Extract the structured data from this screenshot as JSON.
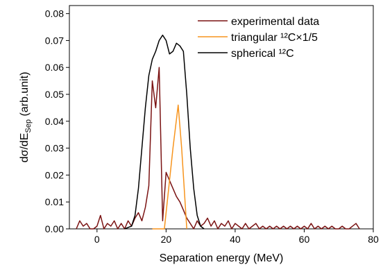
{
  "chart_data": {
    "type": "line",
    "xlabel": "Separation energy (MeV)",
    "ylabel_parts": [
      "dσ/dE",
      "Sep",
      " (arb.unit)"
    ],
    "xlim": [
      -8,
      80
    ],
    "ylim": [
      0,
      0.083
    ],
    "xticks": [
      0,
      20,
      40,
      60,
      80
    ],
    "yticks": [
      {
        "value": 0,
        "label": "0.00"
      },
      {
        "value": 0.01,
        "label": "0.01"
      },
      {
        "value": 0.02,
        "label": "0.02"
      },
      {
        "value": 0.03,
        "label": "0.03"
      },
      {
        "value": 0.04,
        "label": "0.04"
      },
      {
        "value": 0.05,
        "label": "0.05"
      },
      {
        "value": 0.06,
        "label": "0.06"
      },
      {
        "value": 0.07,
        "label": "0.07"
      },
      {
        "value": 0.08,
        "label": "0.08"
      }
    ],
    "legend": "upper right",
    "series": [
      {
        "name": "experimental data",
        "color": "#7a1212",
        "x": [
          -6,
          -5,
          -4,
          -3,
          -2,
          -1,
          0,
          1,
          2,
          3,
          4,
          5,
          6,
          7,
          8,
          9,
          10,
          11,
          12,
          13,
          14,
          15,
          16,
          17,
          18,
          19,
          20,
          21,
          22,
          23,
          24,
          25,
          26,
          27,
          28,
          29,
          30,
          31,
          32,
          33,
          34,
          35,
          36,
          37,
          38,
          39,
          40,
          41,
          42,
          43,
          44,
          45,
          46,
          47,
          48,
          49,
          50,
          51,
          52,
          53,
          54,
          55,
          56,
          57,
          58,
          59,
          60,
          61,
          62,
          63,
          64,
          65,
          66,
          67,
          68,
          69,
          70,
          71,
          72,
          73,
          74,
          75,
          76
        ],
        "values": [
          0,
          0.003,
          0.001,
          0.002,
          0,
          0,
          0.001,
          0.005,
          0,
          0.002,
          0.001,
          0.003,
          0,
          0.002,
          0,
          0.003,
          0.001,
          0.004,
          0.006,
          0.003,
          0.008,
          0.016,
          0.055,
          0.045,
          0.06,
          0.003,
          0.021,
          0.018,
          0.015,
          0.012,
          0.01,
          0.007,
          0.004,
          0.002,
          0,
          0.003,
          0.001,
          0.002,
          0.004,
          0.001,
          0.003,
          0,
          0.002,
          0.001,
          0.003,
          0,
          0.002,
          0.001,
          0,
          0.002,
          0,
          0.001,
          0.002,
          0,
          0.001,
          0,
          0.001,
          0,
          0.001,
          0,
          0.001,
          0,
          0.001,
          0,
          0.001,
          0,
          0.001,
          0,
          0.002,
          0,
          0.001,
          0,
          0.001,
          0,
          0.001,
          0,
          0,
          0.001,
          0,
          0,
          0.001,
          0.002,
          0
        ]
      },
      {
        "name": "triangular ¹²C×1/5",
        "color": "#f7941d",
        "x": [
          16,
          19.5,
          22,
          23.5,
          24.5,
          26
        ],
        "values": [
          0,
          0,
          0.03,
          0.046,
          0.03,
          0
        ]
      },
      {
        "name": "spherical ¹²C",
        "color": "#000000",
        "x": [
          8,
          10,
          11,
          12,
          13,
          14,
          15,
          16,
          17,
          18,
          19,
          20,
          21,
          22,
          23,
          24,
          25,
          26,
          27,
          28,
          29,
          30,
          31
        ],
        "values": [
          0,
          0.001,
          0.005,
          0.015,
          0.03,
          0.045,
          0.057,
          0.063,
          0.066,
          0.07,
          0.072,
          0.07,
          0.065,
          0.066,
          0.069,
          0.068,
          0.066,
          0.05,
          0.03,
          0.015,
          0.005,
          0.001,
          0
        ]
      }
    ]
  }
}
